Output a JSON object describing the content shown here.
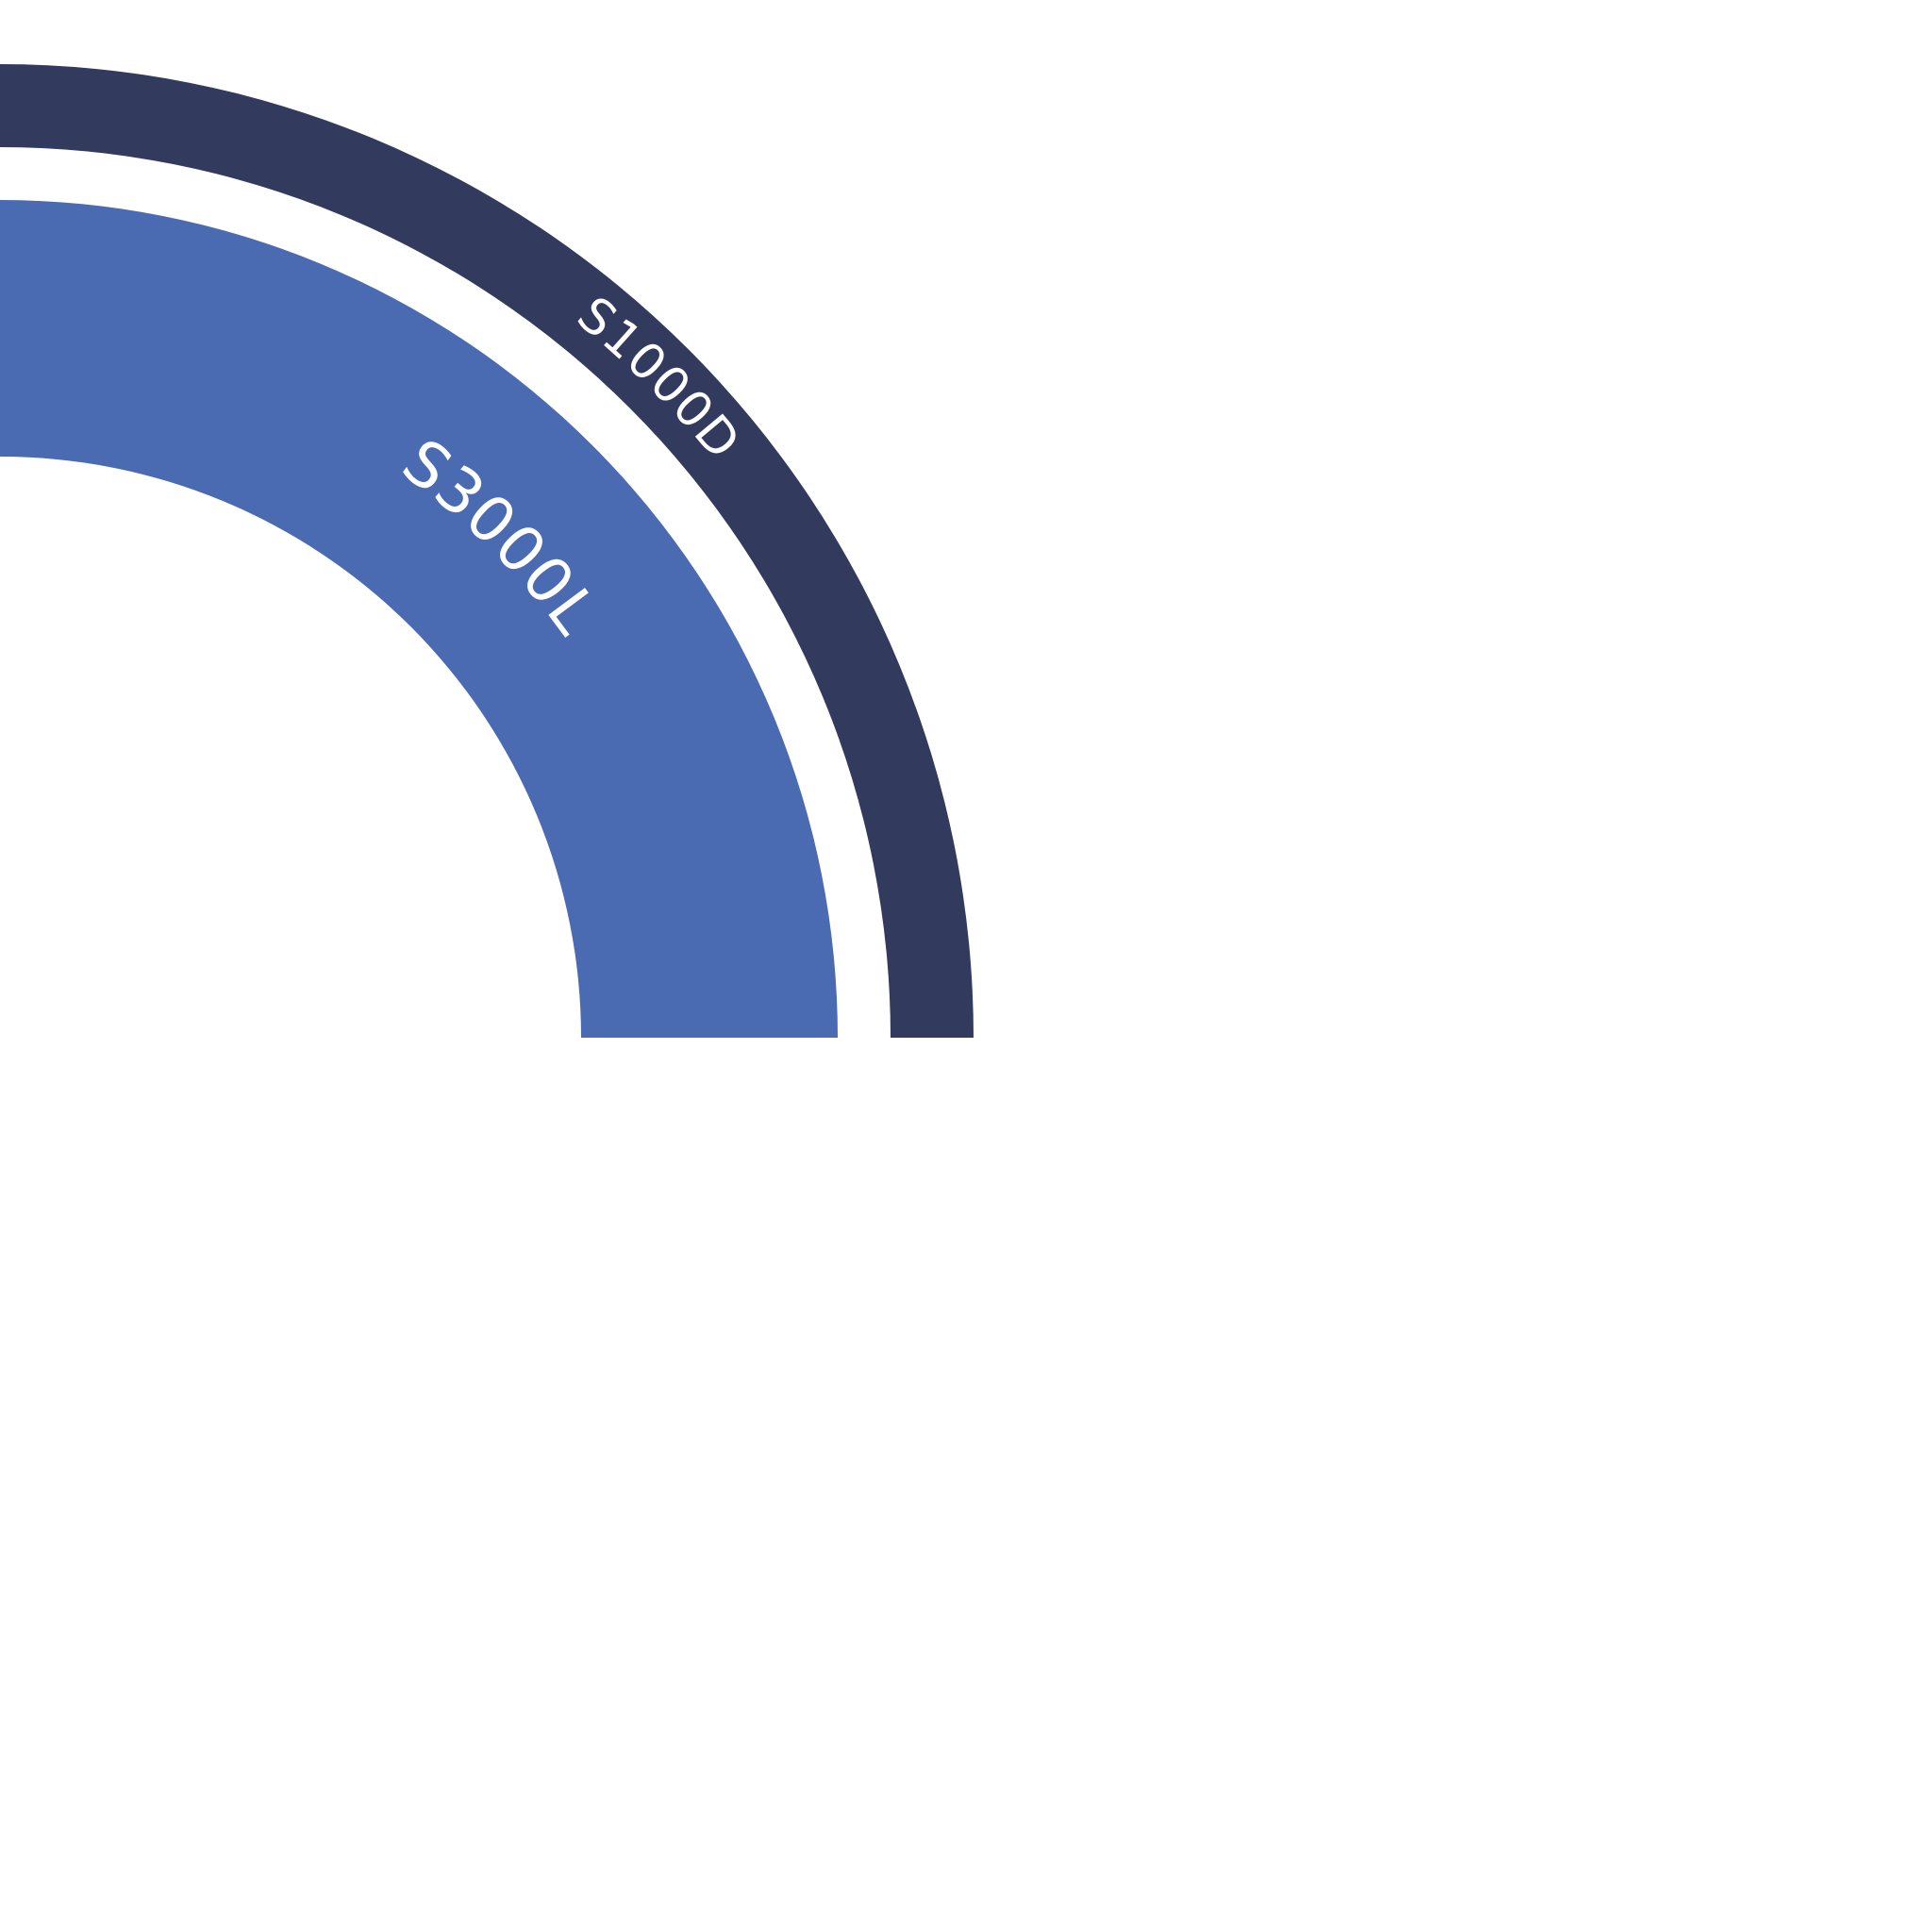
{
  "chart_data": {
    "type": "sunburst",
    "title": "",
    "rings": [
      {
        "level": "outer",
        "label": "S1000D",
        "color": "#323a5e",
        "start_angle_deg": 0,
        "end_angle_deg": 90
      },
      {
        "level": "inner",
        "label": "S3000L",
        "color": "#4a6ab1",
        "start_angle_deg": 0,
        "end_angle_deg": 90
      }
    ],
    "legend": "none",
    "grid": false
  }
}
